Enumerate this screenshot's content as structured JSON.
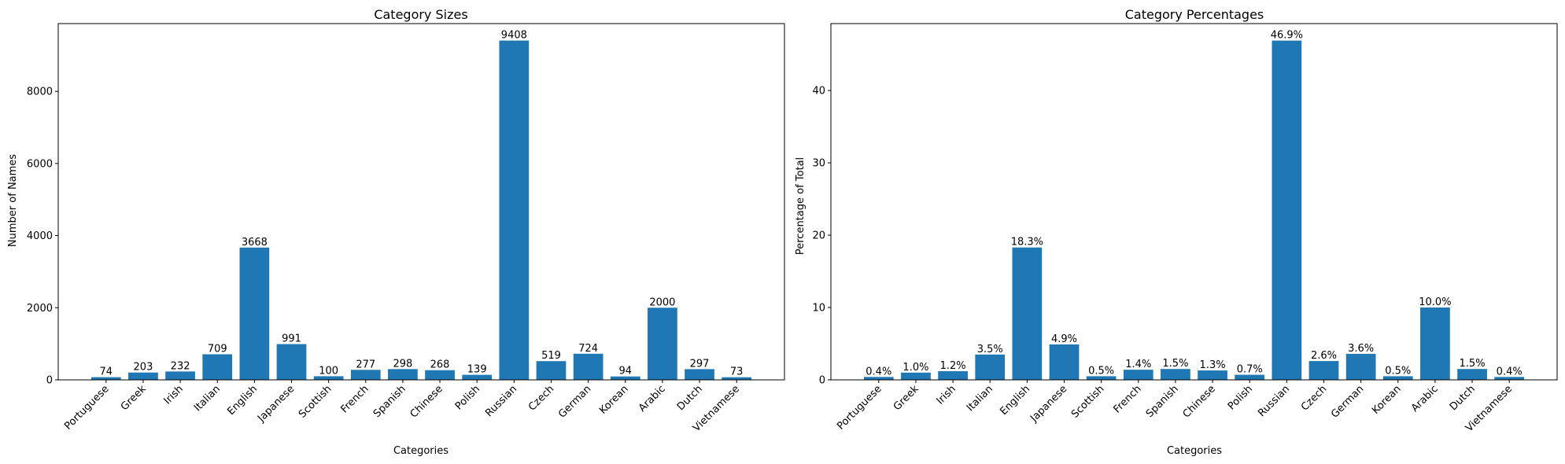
{
  "colors": {
    "bar": "#1f77b4"
  },
  "chart_data": [
    {
      "type": "bar",
      "title": "Category Sizes",
      "xlabel": "Categories",
      "ylabel": "Number of Names",
      "categories": [
        "Portuguese",
        "Greek",
        "Irish",
        "Italian",
        "English",
        "Japanese",
        "Scottish",
        "French",
        "Spanish",
        "Chinese",
        "Polish",
        "Russian",
        "Czech",
        "German",
        "Korean",
        "Arabic",
        "Dutch",
        "Vietnamese"
      ],
      "values": [
        74,
        203,
        232,
        709,
        3668,
        991,
        100,
        277,
        298,
        268,
        139,
        9408,
        519,
        724,
        94,
        2000,
        297,
        73
      ],
      "value_labels": [
        "74",
        "203",
        "232",
        "709",
        "3668",
        "991",
        "100",
        "277",
        "298",
        "268",
        "139",
        "9408",
        "519",
        "724",
        "94",
        "2000",
        "297",
        "73"
      ],
      "yticks": [
        0,
        2000,
        4000,
        6000,
        8000
      ],
      "ytick_labels": [
        "0",
        "2000",
        "4000",
        "6000",
        "8000"
      ],
      "ylim": [
        0,
        9878.4
      ],
      "grid": false,
      "legend": "none"
    },
    {
      "type": "bar",
      "title": "Category Percentages",
      "xlabel": "Categories",
      "ylabel": "Percentage of Total",
      "categories": [
        "Portuguese",
        "Greek",
        "Irish",
        "Italian",
        "English",
        "Japanese",
        "Scottish",
        "French",
        "Spanish",
        "Chinese",
        "Polish",
        "Russian",
        "Czech",
        "German",
        "Korean",
        "Arabic",
        "Dutch",
        "Vietnamese"
      ],
      "values": [
        0.4,
        1.0,
        1.2,
        3.5,
        18.3,
        4.9,
        0.5,
        1.4,
        1.5,
        1.3,
        0.7,
        46.9,
        2.6,
        3.6,
        0.5,
        10.0,
        1.5,
        0.4
      ],
      "value_labels": [
        "0.4%",
        "1.0%",
        "1.2%",
        "3.5%",
        "18.3%",
        "4.9%",
        "0.5%",
        "1.4%",
        "1.5%",
        "1.3%",
        "0.7%",
        "46.9%",
        "2.6%",
        "3.6%",
        "0.5%",
        "10.0%",
        "1.5%",
        "0.4%"
      ],
      "yticks": [
        0,
        10,
        20,
        30,
        40
      ],
      "ytick_labels": [
        "0",
        "10",
        "20",
        "30",
        "40"
      ],
      "ylim": [
        0,
        49.25
      ],
      "grid": false,
      "legend": "none"
    }
  ]
}
